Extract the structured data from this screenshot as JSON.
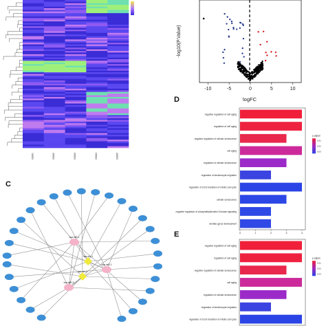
{
  "panels": {
    "c": "C",
    "d": "D",
    "e": "E"
  },
  "heatmap": {
    "colors": [
      "#3a2cd6",
      "#5a47f0",
      "#8f5bf2",
      "#c07aef",
      "#6fe0b0",
      "#9ff07a"
    ],
    "col_labels": [
      "GSM1",
      "GSM2",
      "GSM3",
      "GSM4",
      "GSM5"
    ],
    "legend_colors": [
      "#f5e642",
      "#b57bff",
      "#3b2ae0"
    ]
  },
  "volcano": {
    "xlabel": "logFC",
    "ylabel": "-log10(P.Value)",
    "x_ticks": [
      "-10",
      "-5",
      "0",
      "5",
      "10"
    ],
    "xlim": [
      -12,
      12
    ],
    "colors": {
      "up": "#d7191c",
      "down": "#2b3d8f",
      "ns": "#000000"
    }
  },
  "network": {
    "center_labels": [
      "hsa-miR-1",
      "hsa-circ-1",
      "hsa-miR-2",
      "hsa-circ-2",
      "hsa-miR-3"
    ],
    "outer_count": 34,
    "colors": {
      "outer": "#3d8fd6",
      "mir": "#f4b3c8",
      "circ": "#f0ea3a",
      "edge": "#8f8f8f"
    }
  },
  "chart_data": [
    {
      "type": "bar",
      "panel": "D",
      "categories": [
        "negative regulation of cell aging",
        "regulation of cell aging",
        "negative regulation of cellular senescence",
        "cell aging",
        "regulation of cellular senescence",
        "regulation of keratinocyte migration",
        "regulation of G1/S transition of mitotic cell cycle",
        "cellular senescence",
        "negative regulation of phosphatidylinositol 3-kinase signaling",
        "dentate gyrus development"
      ],
      "values": [
        4,
        4,
        3,
        4,
        3,
        2,
        4,
        3,
        2,
        2
      ],
      "colors": [
        "#f0203a",
        "#ee2240",
        "#e8284c",
        "#cc2a9a",
        "#9c2ac9",
        "#3b44e0",
        "#2a44e6",
        "#2c47e6",
        "#2e49e6",
        "#3049e6"
      ],
      "x_ticks": [
        "0",
        "1",
        "2",
        "3",
        "4"
      ],
      "xlim": [
        0,
        4
      ],
      "legend_title": "p.adjust",
      "legend_ticks": [
        "0.01",
        "0.02",
        "0.03"
      ]
    },
    {
      "type": "bar",
      "panel": "E",
      "categories": [
        "negative regulation of cell aging",
        "regulation of cell aging",
        "negative regulation of cellular senescence",
        "cell aging",
        "regulation of cellular senescence",
        "regulation of keratinocyte migration",
        "regulation of G1/S transition of mitotic cell cycle"
      ],
      "values": [
        4,
        4,
        3,
        4,
        3,
        2,
        4
      ],
      "colors": [
        "#f0203a",
        "#ee2240",
        "#e8284c",
        "#cc2a9a",
        "#9c2ac9",
        "#3b44e0",
        "#2a44e6"
      ],
      "xlim": [
        0,
        4
      ],
      "legend_title": "p.adjust",
      "legend_ticks": [
        "0.01",
        "0.02",
        "0.03"
      ]
    }
  ]
}
